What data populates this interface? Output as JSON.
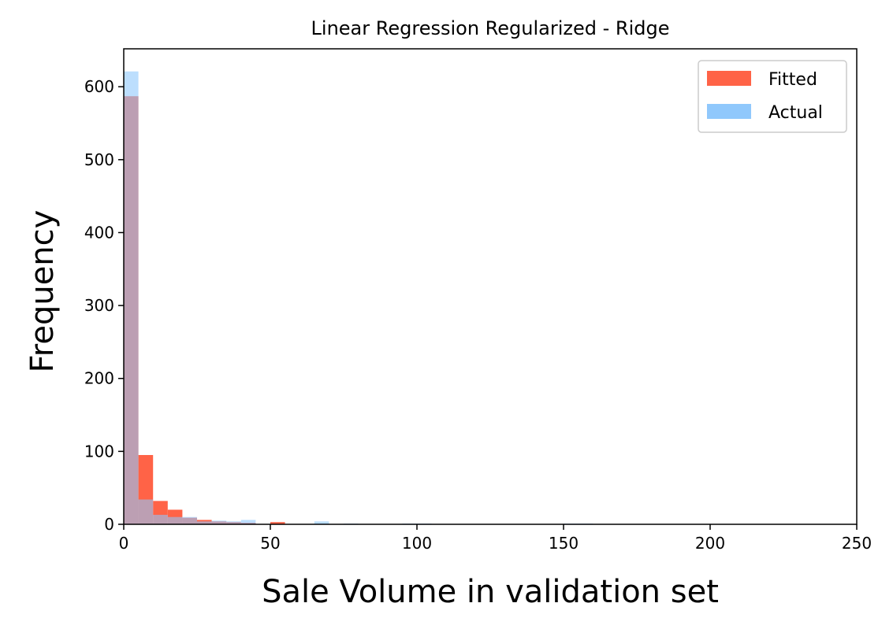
{
  "chart_data": {
    "type": "bar",
    "title": "Linear Regression Regularized - Ridge",
    "xlabel": "Sale Volume in validation set",
    "ylabel": "Frequency",
    "xlim": [
      0,
      250
    ],
    "ylim": [
      0,
      652
    ],
    "xticks": [
      0,
      50,
      100,
      150,
      200,
      250
    ],
    "yticks": [
      0,
      100,
      200,
      300,
      400,
      500,
      600
    ],
    "grid": false,
    "legend": "top-right",
    "bin_width": 5,
    "series": [
      {
        "name": "Fitted",
        "color": "#ff6347",
        "bins": [
          {
            "x0": 0,
            "x1": 5,
            "count": 587
          },
          {
            "x0": 5,
            "x1": 10,
            "count": 95
          },
          {
            "x0": 10,
            "x1": 15,
            "count": 32
          },
          {
            "x0": 15,
            "x1": 20,
            "count": 20
          },
          {
            "x0": 20,
            "x1": 25,
            "count": 9
          },
          {
            "x0": 25,
            "x1": 30,
            "count": 6
          },
          {
            "x0": 30,
            "x1": 35,
            "count": 4
          },
          {
            "x0": 35,
            "x1": 40,
            "count": 3
          },
          {
            "x0": 40,
            "x1": 45,
            "count": 2
          },
          {
            "x0": 50,
            "x1": 55,
            "count": 3
          }
        ]
      },
      {
        "name": "Actual",
        "color": "#90c8fc",
        "bins": [
          {
            "x0": 0,
            "x1": 5,
            "count": 621
          },
          {
            "x0": 5,
            "x1": 10,
            "count": 34
          },
          {
            "x0": 10,
            "x1": 15,
            "count": 13
          },
          {
            "x0": 15,
            "x1": 20,
            "count": 10
          },
          {
            "x0": 20,
            "x1": 25,
            "count": 10
          },
          {
            "x0": 25,
            "x1": 30,
            "count": 4
          },
          {
            "x0": 30,
            "x1": 35,
            "count": 5
          },
          {
            "x0": 35,
            "x1": 40,
            "count": 4
          },
          {
            "x0": 40,
            "x1": 45,
            "count": 6
          },
          {
            "x0": 65,
            "x1": 70,
            "count": 4
          },
          {
            "x0": 75,
            "x1": 80,
            "count": 1
          },
          {
            "x0": 95,
            "x1": 100,
            "count": 1
          },
          {
            "x0": 100,
            "x1": 105,
            "count": 1
          },
          {
            "x0": 150,
            "x1": 155,
            "count": 1
          },
          {
            "x0": 155,
            "x1": 160,
            "count": 1
          }
        ]
      }
    ]
  }
}
